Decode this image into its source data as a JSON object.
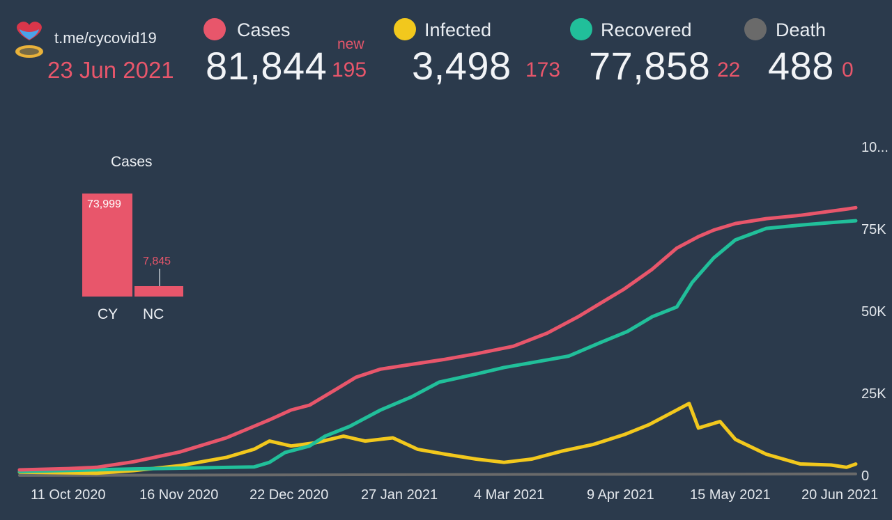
{
  "header": {
    "channel": "t.me/cycovid19",
    "date": "23 Jun 2021",
    "new_label": "new",
    "stats": [
      {
        "label": "Cases",
        "value": "81,844",
        "new": "195",
        "color": "#e8566b"
      },
      {
        "label": "Infected",
        "value": "3,498",
        "new": "173",
        "color": "#f2c81d"
      },
      {
        "label": "Recovered",
        "value": "77,858",
        "new": "22",
        "color": "#21bf9a"
      },
      {
        "label": "Death",
        "value": "488",
        "new": "0",
        "color": "#6a6a6a"
      }
    ]
  },
  "mini_chart": {
    "title": "Cases",
    "categories": [
      "CY",
      "NC"
    ],
    "values": [
      73999,
      7845
    ],
    "labels": [
      "73,999",
      "7,845"
    ]
  },
  "chart_data": {
    "type": "line",
    "x_tick_labels": [
      "11 Oct 2020",
      "16 Nov 2020",
      "22 Dec 2020",
      "27 Jan 2021",
      "4 Mar 2021",
      "9 Apr 2021",
      "15 May 2021",
      "20 Jun 2021"
    ],
    "y_tick_labels": [
      "0",
      "25K",
      "50K",
      "75K",
      "10..."
    ],
    "ylim": [
      0,
      100000
    ],
    "x_range": [
      "2020-09-25",
      "2021-06-23"
    ],
    "series": [
      {
        "name": "Cases",
        "color": "#e8566b",
        "points": [
          [
            "2020-09-25",
            1700
          ],
          [
            "2020-10-11",
            2100
          ],
          [
            "2020-10-20",
            2500
          ],
          [
            "2020-11-01",
            4200
          ],
          [
            "2020-11-16",
            7200
          ],
          [
            "2020-12-01",
            11500
          ],
          [
            "2020-12-15",
            17000
          ],
          [
            "2020-12-22",
            20000
          ],
          [
            "2020-12-28",
            21500
          ],
          [
            "2021-01-05",
            26000
          ],
          [
            "2021-01-12",
            30000
          ],
          [
            "2021-01-20",
            32500
          ],
          [
            "2021-01-27",
            33500
          ],
          [
            "2021-02-10",
            35500
          ],
          [
            "2021-02-20",
            37200
          ],
          [
            "2021-03-04",
            39500
          ],
          [
            "2021-03-15",
            43500
          ],
          [
            "2021-03-25",
            48500
          ],
          [
            "2021-04-01",
            52500
          ],
          [
            "2021-04-09",
            57000
          ],
          [
            "2021-04-18",
            63000
          ],
          [
            "2021-04-26",
            69500
          ],
          [
            "2021-05-03",
            73000
          ],
          [
            "2021-05-08",
            75000
          ],
          [
            "2021-05-15",
            77000
          ],
          [
            "2021-05-25",
            78500
          ],
          [
            "2021-06-05",
            79500
          ],
          [
            "2021-06-20",
            81400
          ],
          [
            "2021-06-23",
            81844
          ]
        ]
      },
      {
        "name": "Infected",
        "color": "#f2c81d",
        "points": [
          [
            "2020-09-25",
            1000
          ],
          [
            "2020-10-20",
            700
          ],
          [
            "2020-11-01",
            1500
          ],
          [
            "2020-11-16",
            3000
          ],
          [
            "2020-12-01",
            5500
          ],
          [
            "2020-12-10",
            8000
          ],
          [
            "2020-12-15",
            10500
          ],
          [
            "2020-12-22",
            9000
          ],
          [
            "2020-12-30",
            10000
          ],
          [
            "2021-01-08",
            12000
          ],
          [
            "2021-01-15",
            10500
          ],
          [
            "2021-01-24",
            11500
          ],
          [
            "2021-02-01",
            8000
          ],
          [
            "2021-02-10",
            6500
          ],
          [
            "2021-02-20",
            5000
          ],
          [
            "2021-03-01",
            4000
          ],
          [
            "2021-03-10",
            5000
          ],
          [
            "2021-03-20",
            7500
          ],
          [
            "2021-03-30",
            9500
          ],
          [
            "2021-04-09",
            12500
          ],
          [
            "2021-04-17",
            15500
          ],
          [
            "2021-04-24",
            19000
          ],
          [
            "2021-04-30",
            22000
          ],
          [
            "2021-05-03",
            14500
          ],
          [
            "2021-05-10",
            16500
          ],
          [
            "2021-05-15",
            11000
          ],
          [
            "2021-05-25",
            6500
          ],
          [
            "2021-06-05",
            3500
          ],
          [
            "2021-06-15",
            3200
          ],
          [
            "2021-06-20",
            2500
          ],
          [
            "2021-06-23",
            3498
          ]
        ]
      },
      {
        "name": "Recovered",
        "color": "#21bf9a",
        "points": [
          [
            "2020-09-25",
            1200
          ],
          [
            "2020-11-01",
            2000
          ],
          [
            "2020-12-10",
            2600
          ],
          [
            "2020-12-15",
            4000
          ],
          [
            "2020-12-20",
            7000
          ],
          [
            "2020-12-28",
            9000
          ],
          [
            "2021-01-02",
            12000
          ],
          [
            "2021-01-10",
            15000
          ],
          [
            "2021-01-20",
            20000
          ],
          [
            "2021-01-30",
            24000
          ],
          [
            "2021-02-08",
            28500
          ],
          [
            "2021-02-20",
            31000
          ],
          [
            "2021-03-01",
            33000
          ],
          [
            "2021-03-10",
            34500
          ],
          [
            "2021-03-22",
            36500
          ],
          [
            "2021-04-01",
            40500
          ],
          [
            "2021-04-10",
            44000
          ],
          [
            "2021-04-18",
            48500
          ],
          [
            "2021-04-26",
            51500
          ],
          [
            "2021-05-01",
            59000
          ],
          [
            "2021-05-08",
            66500
          ],
          [
            "2021-05-15",
            72000
          ],
          [
            "2021-05-25",
            75500
          ],
          [
            "2021-06-05",
            76500
          ],
          [
            "2021-06-15",
            77300
          ],
          [
            "2021-06-23",
            77858
          ]
        ]
      },
      {
        "name": "Death",
        "color": "#6a6a6a",
        "points": [
          [
            "2020-09-25",
            20
          ],
          [
            "2021-06-23",
            488
          ]
        ]
      }
    ]
  }
}
